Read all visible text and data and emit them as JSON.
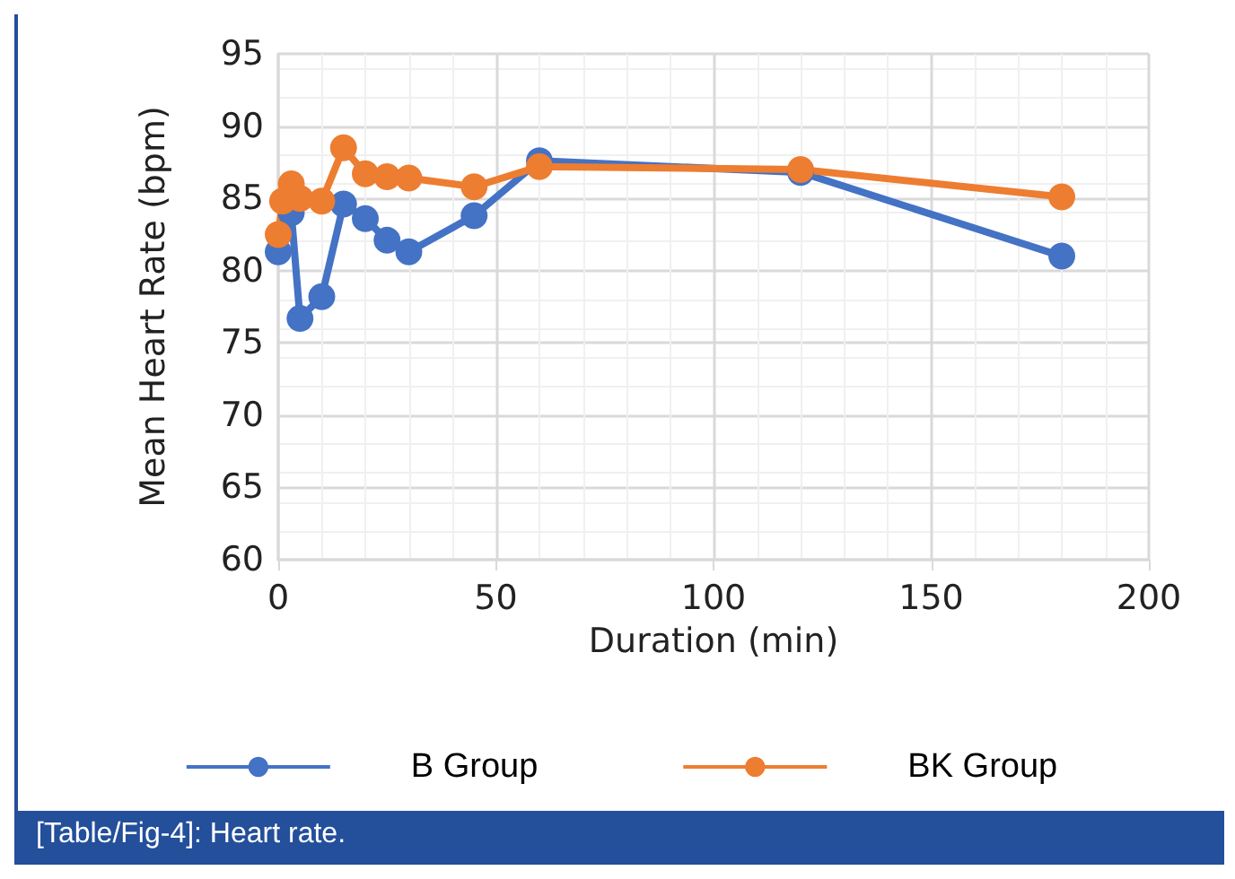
{
  "chart_data": {
    "type": "line",
    "xlabel": "Duration (min)",
    "ylabel": "Mean Heart Rate (bpm)",
    "xlim": [
      0,
      200
    ],
    "xticks": [
      0,
      50,
      100,
      150,
      200
    ],
    "ylim": [
      60,
      95
    ],
    "yticks": [
      60,
      65,
      70,
      75,
      80,
      85,
      90,
      95
    ],
    "grid": true,
    "legend": "bottom",
    "marker": "circle",
    "line_style": "solid",
    "annotations": [
      "[Table/Fig-4]: Heart rate."
    ],
    "series": [
      {
        "name": "B Group",
        "color": "#4472c4",
        "x": [
          0,
          3,
          5,
          10,
          15,
          20,
          25,
          30,
          45,
          60,
          120,
          180
        ],
        "values": [
          81.3,
          84.0,
          76.7,
          78.2,
          84.6,
          83.6,
          82.1,
          81.3,
          83.8,
          87.6,
          86.8,
          81.0
        ]
      },
      {
        "name": "BK Group",
        "color": "#ed7d31",
        "x": [
          0,
          1,
          3,
          5,
          10,
          15,
          20,
          25,
          30,
          45,
          60,
          120,
          180
        ],
        "values": [
          82.5,
          84.8,
          86.0,
          85.0,
          84.8,
          88.5,
          86.7,
          86.5,
          86.4,
          85.8,
          87.2,
          87.0,
          85.1
        ]
      }
    ]
  }
}
